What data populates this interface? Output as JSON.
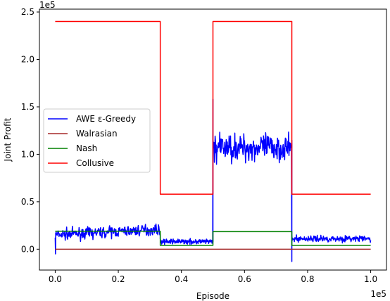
{
  "chart_data": {
    "type": "line",
    "title": "",
    "xlabel": "Episode",
    "ylabel": "Joint Profit",
    "x_offset_label": "1e5",
    "y_offset_label": "1e5",
    "xlim": [
      -0.05,
      1.05
    ],
    "ylim": [
      -0.22,
      2.53
    ],
    "xticks": [
      0.0,
      0.2,
      0.4,
      0.6,
      0.8,
      1.0
    ],
    "xtick_labels": [
      "0.0",
      "0.2",
      "0.4",
      "0.6",
      "0.8",
      "1.0"
    ],
    "yticks": [
      0.0,
      0.5,
      1.0,
      1.5,
      2.0,
      2.5
    ],
    "ytick_labels": [
      "0.0",
      "0.5",
      "1.0",
      "1.5",
      "2.0",
      "2.5"
    ],
    "grid": false,
    "legend_position": "center-left",
    "series": [
      {
        "name": "AWE ε-Greedy",
        "color": "#0000ff",
        "segments": [
          {
            "x_start": 0.0,
            "x_end": 0.333,
            "mean": 0.18,
            "jitter": 0.028,
            "trend": 0.06
          },
          {
            "x_start": 0.333,
            "x_end": 0.5,
            "mean": 0.08,
            "jitter": 0.012,
            "trend": 0.0
          },
          {
            "x_start": 0.5,
            "x_end": 0.75,
            "mean": 1.07,
            "jitter": 0.07,
            "trend": 0.0
          },
          {
            "x_start": 0.75,
            "x_end": 1.0,
            "mean": 0.11,
            "jitter": 0.016,
            "trend": 0.0
          }
        ],
        "spikes": [
          {
            "x": 0.001,
            "y": -0.05
          },
          {
            "x": 0.5,
            "y": 1.58
          },
          {
            "x": 0.75,
            "y": -0.13
          }
        ]
      },
      {
        "name": "Walrasian",
        "color": "#a52a2a",
        "x": [
          0.0,
          1.0
        ],
        "y": [
          0.0,
          0.0
        ]
      },
      {
        "name": "Nash",
        "color": "#008000",
        "x": [
          0.0,
          0.333,
          0.333,
          0.5,
          0.5,
          0.75,
          0.75,
          1.0
        ],
        "y": [
          0.19,
          0.19,
          0.04,
          0.04,
          0.185,
          0.185,
          0.04,
          0.04
        ]
      },
      {
        "name": "Collusive",
        "color": "#ff0000",
        "x": [
          0.0,
          0.333,
          0.333,
          0.5,
          0.5,
          0.75,
          0.75,
          1.0
        ],
        "y": [
          2.4,
          2.4,
          0.58,
          0.58,
          2.4,
          2.4,
          0.58,
          0.58
        ]
      }
    ]
  }
}
